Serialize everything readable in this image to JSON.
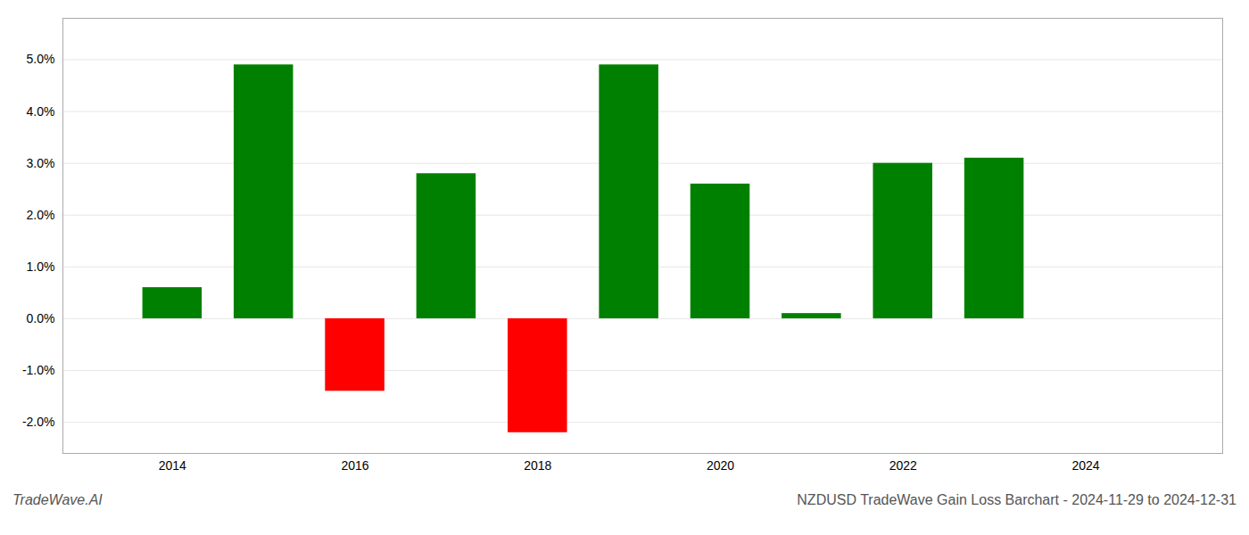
{
  "chart_data": {
    "type": "bar",
    "title": "NZDUSD TradeWave Gain Loss Barchart - 2024-11-29 to 2024-12-31",
    "annotations": [
      "TradeWave.AI"
    ],
    "x": [
      2014,
      2015,
      2016,
      2017,
      2018,
      2019,
      2020,
      2021,
      2022,
      2023
    ],
    "values": [
      0.006,
      0.049,
      -0.014,
      0.028,
      -0.022,
      0.049,
      0.026,
      0.001,
      0.03,
      0.031
    ],
    "colors": [
      "#008000",
      "#008000",
      "#ff0000",
      "#008000",
      "#ff0000",
      "#008000",
      "#008000",
      "#008000",
      "#008000",
      "#008000"
    ],
    "xlim": [
      2012.8,
      2025.5
    ],
    "xticks": [
      2014,
      2016,
      2018,
      2020,
      2022,
      2024
    ],
    "ylim": [
      -0.026,
      0.058
    ],
    "yticks": [
      {
        "value": -0.02,
        "label": "-2.0%"
      },
      {
        "value": -0.01,
        "label": "-1.0%"
      },
      {
        "value": 0.0,
        "label": "0.0%"
      },
      {
        "value": 0.01,
        "label": "1.0%"
      },
      {
        "value": 0.02,
        "label": "2.0%"
      },
      {
        "value": 0.03,
        "label": "3.0%"
      },
      {
        "value": 0.04,
        "label": "4.0%"
      },
      {
        "value": 0.05,
        "label": "5.0%"
      }
    ],
    "grid": true
  }
}
